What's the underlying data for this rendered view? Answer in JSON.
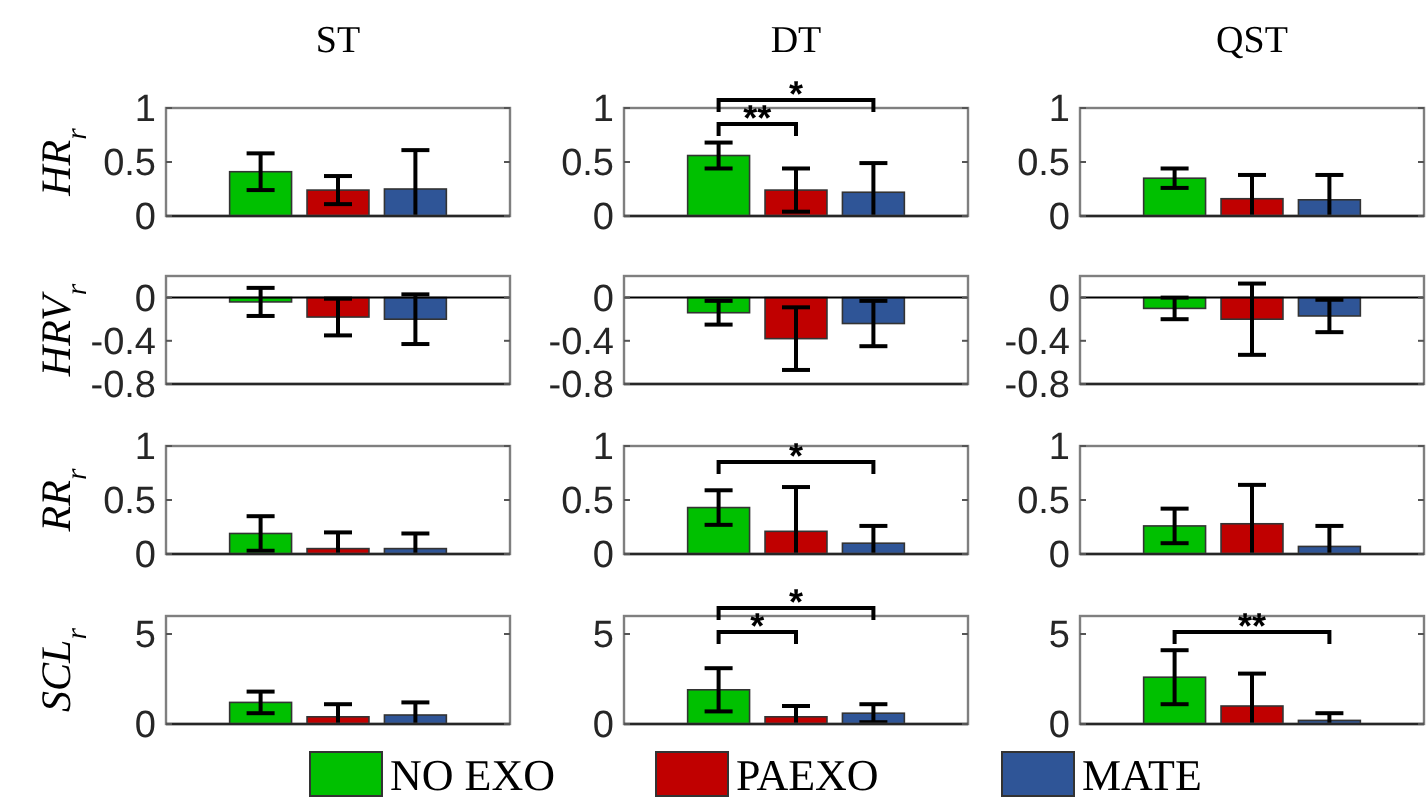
{
  "chart_data": [
    {
      "type": "bar",
      "title": "ST",
      "ylabel": "HR$_{r}$",
      "categories": [
        null
      ],
      "ylim": [
        0,
        1
      ],
      "yticks": [
        0,
        0.5,
        1
      ],
      "tick_labels": "y",
      "series": [
        {
          "color": "#00c000",
          "values": [
            0.41
          ],
          "errors": [
            0.17
          ]
        },
        {
          "color": "#c00000",
          "values": [
            0.24
          ],
          "errors": [
            0.13
          ]
        },
        {
          "color": "#2f5597",
          "values": [
            0.25
          ],
          "errors": [
            [
              0,
              0.61
            ]
          ]
        }
      ]
    },
    {
      "type": "bar",
      "title": "DT",
      "categories": [
        null
      ],
      "ylim": [
        0,
        1
      ],
      "yticks": [
        0,
        0.5,
        1
      ],
      "tick_labels": "y",
      "annotations": [
        "**",
        "*"
      ],
      "series": [
        {
          "color": "#00c000",
          "values": [
            0.56
          ],
          "errors": [
            0.12
          ]
        },
        {
          "color": "#c00000",
          "values": [
            0.24
          ],
          "errors": [
            0.2
          ]
        },
        {
          "color": "#2f5597",
          "values": [
            0.22
          ],
          "errors": [
            [
              0,
              0.49
            ]
          ]
        }
      ]
    },
    {
      "type": "bar",
      "title": "QST",
      "categories": [
        null
      ],
      "ylim": [
        0,
        1
      ],
      "yticks": [
        0,
        0.5,
        1
      ],
      "tick_labels": "y",
      "series": [
        {
          "color": "#00c000",
          "values": [
            0.35
          ],
          "errors": [
            0.09
          ]
        },
        {
          "color": "#c00000",
          "values": [
            0.16
          ],
          "errors": [
            [
              0,
              0.38
            ]
          ]
        },
        {
          "color": "#2f5597",
          "values": [
            0.15
          ],
          "errors": [
            [
              0,
              0.38
            ]
          ]
        }
      ]
    },
    {
      "type": "bar",
      "ylabel": "HRV$_{r}$",
      "categories": [
        null
      ],
      "ylim": [
        -0.8,
        0.2
      ],
      "yticks": [
        -0.8,
        -0.4,
        0
      ],
      "tick_labels": "y",
      "series": [
        {
          "color": "#00c000",
          "values": [
            -0.04
          ],
          "errors": [
            0.13
          ]
        },
        {
          "color": "#c00000",
          "values": [
            -0.18
          ],
          "errors": [
            0.17
          ]
        },
        {
          "color": "#2f5597",
          "values": [
            -0.2
          ],
          "errors": [
            0.23
          ]
        }
      ]
    },
    {
      "type": "bar",
      "categories": [
        null
      ],
      "ylim": [
        -0.8,
        0.2
      ],
      "yticks": [
        -0.8,
        -0.4,
        0
      ],
      "tick_labels": "y",
      "series": [
        {
          "color": "#00c000",
          "values": [
            -0.14
          ],
          "errors": [
            0.11
          ]
        },
        {
          "color": "#c00000",
          "values": [
            -0.38
          ],
          "errors": [
            0.29
          ]
        },
        {
          "color": "#2f5597",
          "values": [
            -0.24
          ],
          "errors": [
            0.21
          ]
        }
      ]
    },
    {
      "type": "bar",
      "categories": [
        null
      ],
      "ylim": [
        -0.8,
        0.2
      ],
      "yticks": [
        -0.8,
        -0.4,
        0
      ],
      "tick_labels": "y",
      "series": [
        {
          "color": "#00c000",
          "values": [
            -0.1
          ],
          "errors": [
            0.1
          ]
        },
        {
          "color": "#c00000",
          "values": [
            -0.2
          ],
          "errors": [
            0.33
          ]
        },
        {
          "color": "#2f5597",
          "values": [
            -0.17
          ],
          "errors": [
            0.15
          ]
        }
      ]
    },
    {
      "type": "bar",
      "ylabel": "RR$_{r}$",
      "categories": [
        null
      ],
      "ylim": [
        0,
        1
      ],
      "yticks": [
        0,
        0.5,
        1
      ],
      "tick_labels": "y",
      "series": [
        {
          "color": "#00c000",
          "values": [
            0.19
          ],
          "errors": [
            0.16
          ]
        },
        {
          "color": "#c00000",
          "values": [
            0.05
          ],
          "errors": [
            [
              0,
              0.2
            ]
          ]
        },
        {
          "color": "#2f5597",
          "values": [
            0.05
          ],
          "errors": [
            [
              0,
              0.19
            ]
          ]
        }
      ]
    },
    {
      "type": "bar",
      "categories": [
        null
      ],
      "ylim": [
        0,
        1
      ],
      "yticks": [
        0,
        0.5,
        1
      ],
      "tick_labels": "y",
      "annotations": [
        "*"
      ],
      "series": [
        {
          "color": "#00c000",
          "values": [
            0.43
          ],
          "errors": [
            0.16
          ]
        },
        {
          "color": "#c00000",
          "values": [
            0.21
          ],
          "errors": [
            [
              0,
              0.62
            ]
          ]
        },
        {
          "color": "#2f5597",
          "values": [
            0.1
          ],
          "errors": [
            [
              0,
              0.26
            ]
          ]
        }
      ]
    },
    {
      "type": "bar",
      "categories": [
        null
      ],
      "ylim": [
        0,
        1
      ],
      "yticks": [
        0,
        0.5,
        1
      ],
      "tick_labels": "y",
      "series": [
        {
          "color": "#00c000",
          "values": [
            0.26
          ],
          "errors": [
            0.16
          ]
        },
        {
          "color": "#c00000",
          "values": [
            0.28
          ],
          "errors": [
            [
              0,
              0.64
            ]
          ]
        },
        {
          "color": "#2f5597",
          "values": [
            0.07
          ],
          "errors": [
            [
              0,
              0.26
            ]
          ]
        }
      ]
    },
    {
      "type": "bar",
      "ylabel": "SCL$_{r}$",
      "categories": [
        null
      ],
      "ylim": [
        0,
        6
      ],
      "yticks": [
        0,
        5
      ],
      "tick_labels": "y",
      "legend": "bottom",
      "series": [
        {
          "name": "NO EXO",
          "color": "#00c000",
          "values": [
            1.2
          ],
          "errors": [
            0.6
          ]
        },
        {
          "name": "PAEXO",
          "color": "#c00000",
          "values": [
            0.4
          ],
          "errors": [
            [
              0,
              1.1
            ]
          ]
        },
        {
          "name": "MATE",
          "color": "#2f5597",
          "values": [
            0.5
          ],
          "errors": [
            [
              0,
              1.2
            ]
          ]
        }
      ]
    },
    {
      "type": "bar",
      "categories": [
        null
      ],
      "ylim": [
        0,
        6
      ],
      "yticks": [
        0,
        5
      ],
      "tick_labels": "y",
      "annotations": [
        "*",
        "*"
      ],
      "series": [
        {
          "color": "#00c000",
          "values": [
            1.9
          ],
          "errors": [
            1.2
          ]
        },
        {
          "color": "#c00000",
          "values": [
            0.4
          ],
          "errors": [
            [
              0,
              1.0
            ]
          ]
        },
        {
          "color": "#2f5597",
          "values": [
            0.6
          ],
          "errors": [
            0.5
          ]
        }
      ]
    },
    {
      "type": "bar",
      "categories": [
        null
      ],
      "ylim": [
        0,
        6
      ],
      "yticks": [
        0,
        5
      ],
      "tick_labels": "y",
      "annotations": [
        "**"
      ],
      "series": [
        {
          "color": "#00c000",
          "values": [
            2.6
          ],
          "errors": [
            1.5
          ]
        },
        {
          "color": "#c00000",
          "values": [
            1.0
          ],
          "errors": [
            [
              0,
              2.8
            ]
          ]
        },
        {
          "color": "#2f5597",
          "values": [
            0.2
          ],
          "errors": [
            [
              0,
              0.6
            ]
          ]
        }
      ]
    }
  ]
}
